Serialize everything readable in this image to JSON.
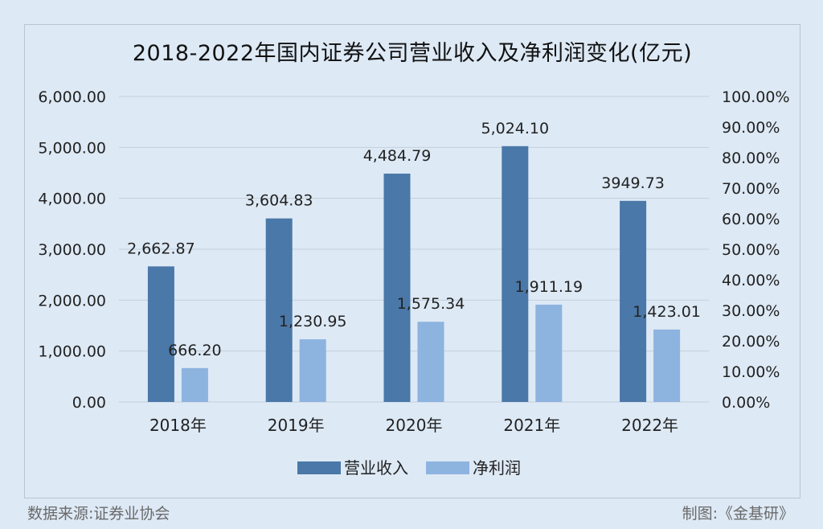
{
  "chart_data": {
    "type": "bar",
    "title": "2018-2022年国内证券公司营业收入及净利润变化(亿元)",
    "categories": [
      "2018年",
      "2019年",
      "2020年",
      "2021年",
      "2022年"
    ],
    "series": [
      {
        "name": "营业收入",
        "values": [
          2662.87,
          3604.83,
          4484.79,
          5024.1,
          3949.73
        ],
        "labels": [
          "2,662.87",
          "3,604.83",
          "4,484.79",
          "5,024.10",
          "3949.73"
        ],
        "color": "#4a78a8"
      },
      {
        "name": "净利润",
        "values": [
          666.2,
          1230.95,
          1575.34,
          1911.19,
          1423.01
        ],
        "labels": [
          "666.20",
          "1,230.95",
          "1,575.34",
          "1,911.19",
          "1,423.01"
        ],
        "color": "#8db3df"
      }
    ],
    "ylim": [
      0,
      6000
    ],
    "y_ticks": [
      "0.00",
      "1,000.00",
      "2,000.00",
      "3,000.00",
      "4,000.00",
      "5,000.00",
      "6,000.00"
    ],
    "y2lim": [
      0,
      100
    ],
    "y2_ticks": [
      "0.00%",
      "10.00%",
      "20.00%",
      "30.00%",
      "40.00%",
      "50.00%",
      "60.00%",
      "70.00%",
      "80.00%",
      "90.00%",
      "100.00%"
    ],
    "grid": true,
    "legend": "bottom-center"
  },
  "footer": {
    "source": "数据来源:证券业协会",
    "credit": "制图:《金基研》"
  }
}
